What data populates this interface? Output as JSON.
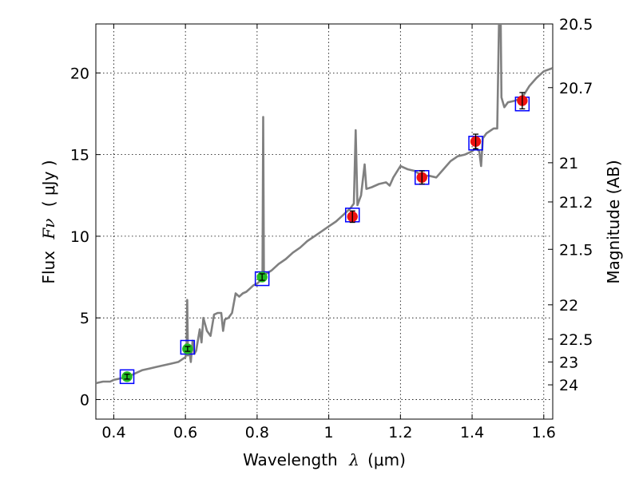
{
  "chart_data": {
    "type": "scatter",
    "xlabel_prefix": "Wavelength",
    "xlabel_symbol": "λ",
    "xlabel_unit": "(μm)",
    "ylabel_prefix": "Flux",
    "ylabel_symbol": "Fν",
    "ylabel_unit": "( μJy )",
    "ylabel_right": "Magnitude (AB)",
    "xlim": [
      0.35,
      1.625
    ],
    "ylim": [
      -1.2,
      23
    ],
    "grid": true,
    "x_ticks": [
      0.4,
      0.6,
      0.8,
      1.0,
      1.2,
      1.4,
      1.6
    ],
    "x_tick_labels": [
      "0.4",
      "0.6",
      "0.8",
      "1",
      "1.2",
      "1.4",
      "1.6"
    ],
    "y_ticks": [
      0,
      5,
      10,
      15,
      20
    ],
    "y_tick_labels": [
      "0",
      "5",
      "10",
      "15",
      "20"
    ],
    "right_ticks": [
      {
        "label": "20.5",
        "flux": 23.0
      },
      {
        "label": "20.7",
        "flux": 19.1
      },
      {
        "label": "21",
        "flux": 14.5
      },
      {
        "label": "21.2",
        "flux": 12.1
      },
      {
        "label": "21.5",
        "flux": 9.2
      },
      {
        "label": "22",
        "flux": 5.8
      },
      {
        "label": "22.5",
        "flux": 3.7
      },
      {
        "label": "23",
        "flux": 2.3
      },
      {
        "label": "24",
        "flux": 0.9
      }
    ],
    "colors": {
      "spectrum": "#808080",
      "optical_points": "#22bb22",
      "nir_points": "#ee1111",
      "model_boxes": "#0000ff",
      "errorbars": "#000000"
    },
    "photometry": [
      {
        "x": 0.437,
        "y": 1.4,
        "err": 0.15,
        "model": 1.4,
        "band": "optical"
      },
      {
        "x": 0.606,
        "y": 3.1,
        "err": 0.15,
        "model": 3.2,
        "band": "optical"
      },
      {
        "x": 0.814,
        "y": 7.5,
        "err": 0.2,
        "model": 7.4,
        "band": "optical"
      },
      {
        "x": 1.066,
        "y": 11.2,
        "err": 0.35,
        "model": 11.3,
        "band": "nir"
      },
      {
        "x": 1.26,
        "y": 13.6,
        "err": 0.4,
        "model": 13.6,
        "band": "nir"
      },
      {
        "x": 1.41,
        "y": 15.8,
        "err": 0.45,
        "model": 15.7,
        "band": "nir"
      },
      {
        "x": 1.54,
        "y": 18.3,
        "err": 0.5,
        "model": 18.1,
        "band": "nir"
      }
    ],
    "spectrum": [
      [
        0.35,
        1.0
      ],
      [
        0.37,
        1.1
      ],
      [
        0.39,
        1.1
      ],
      [
        0.4,
        1.2
      ],
      [
        0.42,
        1.3
      ],
      [
        0.44,
        1.4
      ],
      [
        0.46,
        1.6
      ],
      [
        0.48,
        1.8
      ],
      [
        0.5,
        1.9
      ],
      [
        0.52,
        2.0
      ],
      [
        0.54,
        2.1
      ],
      [
        0.56,
        2.2
      ],
      [
        0.58,
        2.3
      ],
      [
        0.6,
        2.6
      ],
      [
        0.603,
        2.9
      ],
      [
        0.605,
        6.1
      ],
      [
        0.607,
        2.7
      ],
      [
        0.61,
        3.2
      ],
      [
        0.615,
        2.3
      ],
      [
        0.62,
        3.6
      ],
      [
        0.625,
        2.8
      ],
      [
        0.63,
        3.0
      ],
      [
        0.64,
        4.3
      ],
      [
        0.645,
        3.5
      ],
      [
        0.65,
        5.0
      ],
      [
        0.66,
        4.2
      ],
      [
        0.67,
        3.9
      ],
      [
        0.68,
        5.2
      ],
      [
        0.69,
        5.3
      ],
      [
        0.7,
        5.3
      ],
      [
        0.705,
        4.2
      ],
      [
        0.71,
        4.9
      ],
      [
        0.72,
        5.0
      ],
      [
        0.73,
        5.3
      ],
      [
        0.74,
        6.5
      ],
      [
        0.75,
        6.3
      ],
      [
        0.76,
        6.5
      ],
      [
        0.77,
        6.6
      ],
      [
        0.78,
        6.8
      ],
      [
        0.79,
        7.0
      ],
      [
        0.8,
        7.1
      ],
      [
        0.81,
        7.3
      ],
      [
        0.815,
        7.4
      ],
      [
        0.817,
        17.3
      ],
      [
        0.819,
        7.6
      ],
      [
        0.825,
        7.7
      ],
      [
        0.84,
        7.9
      ],
      [
        0.86,
        8.3
      ],
      [
        0.88,
        8.6
      ],
      [
        0.9,
        9.0
      ],
      [
        0.92,
        9.3
      ],
      [
        0.94,
        9.7
      ],
      [
        0.96,
        10.0
      ],
      [
        0.98,
        10.3
      ],
      [
        1.0,
        10.6
      ],
      [
        1.02,
        10.9
      ],
      [
        1.04,
        11.3
      ],
      [
        1.06,
        11.7
      ],
      [
        1.07,
        12.0
      ],
      [
        1.075,
        16.5
      ],
      [
        1.08,
        11.9
      ],
      [
        1.09,
        12.5
      ],
      [
        1.1,
        14.4
      ],
      [
        1.105,
        12.9
      ],
      [
        1.12,
        13.0
      ],
      [
        1.14,
        13.2
      ],
      [
        1.16,
        13.3
      ],
      [
        1.17,
        13.1
      ],
      [
        1.18,
        13.6
      ],
      [
        1.2,
        14.3
      ],
      [
        1.22,
        14.1
      ],
      [
        1.24,
        14.0
      ],
      [
        1.26,
        13.7
      ],
      [
        1.28,
        13.7
      ],
      [
        1.3,
        13.6
      ],
      [
        1.32,
        14.1
      ],
      [
        1.34,
        14.6
      ],
      [
        1.36,
        14.9
      ],
      [
        1.38,
        15.0
      ],
      [
        1.4,
        15.2
      ],
      [
        1.41,
        15.4
      ],
      [
        1.42,
        15.2
      ],
      [
        1.425,
        14.3
      ],
      [
        1.43,
        16.0
      ],
      [
        1.44,
        16.3
      ],
      [
        1.46,
        16.6
      ],
      [
        1.47,
        16.6
      ],
      [
        1.475,
        23.0
      ],
      [
        1.48,
        23.0
      ],
      [
        1.482,
        18.5
      ],
      [
        1.49,
        17.9
      ],
      [
        1.5,
        18.2
      ],
      [
        1.52,
        18.3
      ],
      [
        1.54,
        18.5
      ],
      [
        1.56,
        19.2
      ],
      [
        1.58,
        19.7
      ],
      [
        1.6,
        20.1
      ],
      [
        1.625,
        20.3
      ]
    ]
  }
}
